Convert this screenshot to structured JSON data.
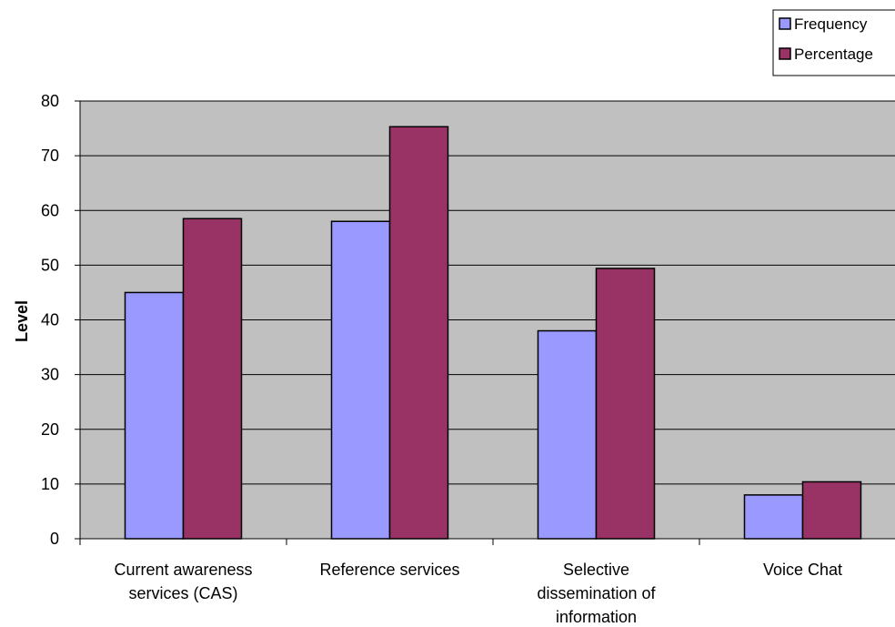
{
  "chart_data": {
    "type": "bar",
    "title": "",
    "xlabel": "",
    "ylabel": "Level",
    "ylim": [
      0,
      80
    ],
    "yticks": [
      0,
      10,
      20,
      30,
      40,
      50,
      60,
      70,
      80
    ],
    "grid": true,
    "legend_position": "top-right",
    "categories": [
      [
        "Current awareness",
        "services (CAS)"
      ],
      [
        "Reference services"
      ],
      [
        "Selective",
        "dissemination of",
        "information"
      ],
      [
        "Voice Chat"
      ]
    ],
    "series": [
      {
        "name": "Frequency",
        "values": [
          45,
          58,
          38,
          8
        ],
        "color": "#9999ff"
      },
      {
        "name": "Percentage",
        "values": [
          58.5,
          75.3,
          49.4,
          10.4
        ],
        "color": "#993366"
      }
    ],
    "plot_background": "#c0c0c0",
    "gridline_color": "#000000"
  }
}
